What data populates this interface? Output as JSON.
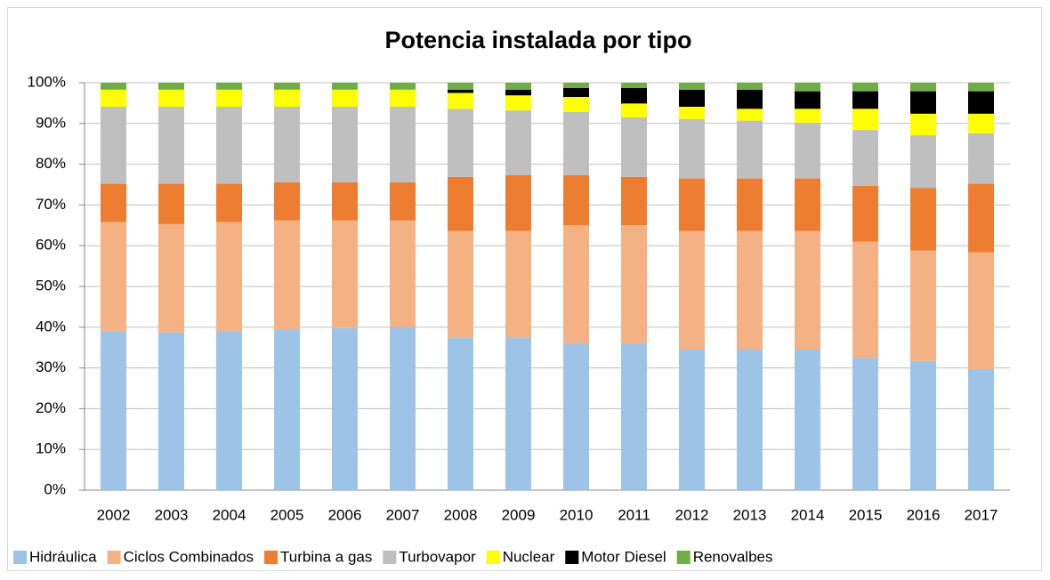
{
  "chart_data": {
    "type": "stacked_bar",
    "title": "Potencia instalada por tipo",
    "categories": [
      "2002",
      "2003",
      "2004",
      "2005",
      "2006",
      "2007",
      "2008",
      "2009",
      "2010",
      "2011",
      "2012",
      "2013",
      "2014",
      "2015",
      "2016",
      "2017"
    ],
    "series": [
      {
        "name": "Hidráulica",
        "color": "#9dc3e6",
        "values": [
          39,
          38.7,
          39,
          39.5,
          39.8,
          40,
          37.5,
          37.5,
          36,
          36,
          34.5,
          34.5,
          34.5,
          32.5,
          31.7,
          29.7
        ]
      },
      {
        "name": "Ciclos Combinados",
        "color": "#f4b183",
        "values": [
          26.8,
          26.6,
          26.8,
          26.7,
          26.4,
          26.2,
          26.1,
          26.1,
          29,
          29,
          29.1,
          29.1,
          29.1,
          28.5,
          27.1,
          28.7
        ]
      },
      {
        "name": "Turbina a gas",
        "color": "#ed7d31",
        "values": [
          9.4,
          9.9,
          9.4,
          9.4,
          9.4,
          9.4,
          13.3,
          13.7,
          12.3,
          11.9,
          12.9,
          12.9,
          12.9,
          13.7,
          15.4,
          16.8
        ]
      },
      {
        "name": "Turbovapor",
        "color": "#bfbfbf",
        "values": [
          18.9,
          18.9,
          18.9,
          18.5,
          18.5,
          18.5,
          16.7,
          15.9,
          15.5,
          14.6,
          14.6,
          14.2,
          13.7,
          13.7,
          12.9,
          12.4
        ]
      },
      {
        "name": "Nuclear",
        "color": "#ffff00",
        "values": [
          4.2,
          4.2,
          4.2,
          4.2,
          4.2,
          4.2,
          3.9,
          3.7,
          3.7,
          3.4,
          3,
          2.9,
          3.4,
          5.2,
          5.3,
          4.8
        ]
      },
      {
        "name": "Motor Diesel",
        "color": "#000000",
        "values": [
          0,
          0,
          0,
          0,
          0,
          0,
          0.8,
          1.4,
          2.2,
          3.8,
          4.2,
          4.7,
          4.3,
          4.3,
          5.5,
          5.5
        ]
      },
      {
        "name": "Renovalbes",
        "color": "#70ad47",
        "values": [
          1.7,
          1.7,
          1.7,
          1.7,
          1.7,
          1.7,
          1.7,
          1.7,
          1.3,
          1.3,
          1.7,
          1.7,
          2.1,
          2.1,
          2.1,
          2.1
        ]
      }
    ],
    "ylim": [
      0,
      100
    ],
    "yticks": [
      {
        "value": 0,
        "label": "0%"
      },
      {
        "value": 10,
        "label": "10%"
      },
      {
        "value": 20,
        "label": "20%"
      },
      {
        "value": 30,
        "label": "30%"
      },
      {
        "value": 40,
        "label": "40%"
      },
      {
        "value": 50,
        "label": "50%"
      },
      {
        "value": 60,
        "label": "60%"
      },
      {
        "value": 70,
        "label": "70%"
      },
      {
        "value": 80,
        "label": "80%"
      },
      {
        "value": 90,
        "label": "90%"
      },
      {
        "value": 100,
        "label": "100%"
      }
    ],
    "grid": true,
    "legend": "bottom"
  }
}
